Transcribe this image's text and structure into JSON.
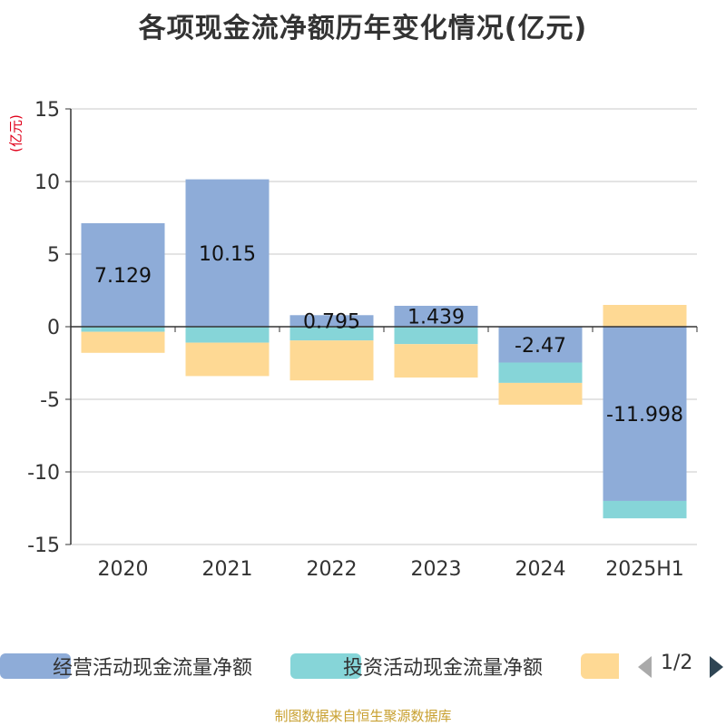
{
  "title": "各项现金流净额历年变化情况(亿元)",
  "unit": "(亿元)",
  "source": "制图数据来自恒生聚源数据库",
  "pager": "1/2",
  "colors": {
    "operating": "#8eacd8",
    "investing": "#86d5d8",
    "financing": "#fed994",
    "axis": "#333333",
    "grid": "#c8c8c8"
  },
  "legend": [
    {
      "name": "经营活动现金流量净额",
      "color": "#8eacd8"
    },
    {
      "name": "投资活动现金流量净额",
      "color": "#86d5d8"
    },
    {
      "name": "",
      "color": "#fed994"
    }
  ],
  "chart_data": {
    "type": "bar",
    "stacked": true,
    "categories": [
      "2020",
      "2021",
      "2022",
      "2023",
      "2024",
      "2025H1"
    ],
    "ylim": [
      -15,
      15
    ],
    "yticks": [
      15,
      10,
      5,
      0,
      -5,
      -10,
      -15
    ],
    "grid": true,
    "legend_position": "bottom",
    "series": [
      {
        "name": "经营活动现金流量净额",
        "values": [
          7.129,
          10.15,
          0.795,
          1.439,
          -2.47,
          -11.998
        ]
      },
      {
        "name": "投资活动现金流量净额",
        "values": [
          -0.35,
          -1.1,
          -0.95,
          -1.2,
          -1.4,
          -1.2
        ]
      },
      {
        "values": [
          -1.45,
          -2.3,
          -2.75,
          -2.3,
          -1.5,
          1.5
        ]
      }
    ],
    "data_labels": [
      "7.129",
      "10.15",
      "0.795",
      "1.439",
      "-2.47",
      "-11.998"
    ]
  }
}
